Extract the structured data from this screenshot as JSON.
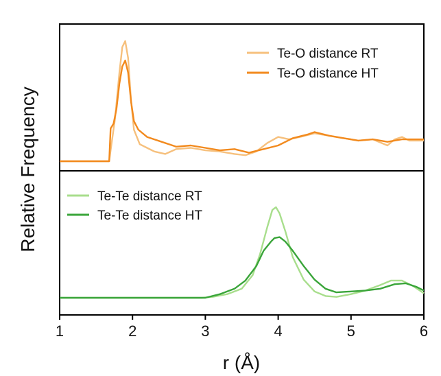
{
  "chart_data": [
    {
      "type": "line",
      "panel": "top",
      "xlabel": "r (Å)",
      "ylabel": "Relative Frequency",
      "xlim": [
        1,
        6
      ],
      "ylim": [
        0,
        1
      ],
      "legend_position": "top-right",
      "series": [
        {
          "name": "Te-O distance RT",
          "color": "#f6c07d",
          "x": [
            1.0,
            1.68,
            1.7,
            1.76,
            1.82,
            1.86,
            1.9,
            1.94,
            1.98,
            2.02,
            2.1,
            2.2,
            2.3,
            2.45,
            2.6,
            2.8,
            3.0,
            3.2,
            3.4,
            3.55,
            3.7,
            3.85,
            4.0,
            4.15,
            4.3,
            4.5,
            4.7,
            4.9,
            5.1,
            5.3,
            5.5,
            5.6,
            5.7,
            5.8,
            6.0
          ],
          "y": [
            0.0,
            0.0,
            0.09,
            0.35,
            0.73,
            0.94,
            0.99,
            0.85,
            0.5,
            0.26,
            0.14,
            0.11,
            0.08,
            0.06,
            0.1,
            0.11,
            0.09,
            0.08,
            0.06,
            0.05,
            0.08,
            0.15,
            0.2,
            0.18,
            0.2,
            0.23,
            0.21,
            0.19,
            0.17,
            0.18,
            0.13,
            0.18,
            0.2,
            0.17,
            0.17
          ]
        },
        {
          "name": "Te-O distance HT",
          "color": "#f28a1e",
          "x": [
            1.0,
            1.68,
            1.7,
            1.74,
            1.78,
            1.82,
            1.86,
            1.9,
            1.94,
            1.98,
            2.02,
            2.08,
            2.2,
            2.4,
            2.6,
            2.8,
            3.0,
            3.2,
            3.4,
            3.6,
            3.8,
            4.0,
            4.2,
            4.4,
            4.5,
            4.7,
            4.9,
            5.1,
            5.3,
            5.5,
            5.7,
            5.9,
            6.0
          ],
          "y": [
            0.0,
            0.0,
            0.27,
            0.31,
            0.43,
            0.64,
            0.78,
            0.83,
            0.73,
            0.49,
            0.33,
            0.26,
            0.2,
            0.16,
            0.12,
            0.13,
            0.11,
            0.09,
            0.1,
            0.07,
            0.1,
            0.13,
            0.19,
            0.22,
            0.24,
            0.21,
            0.19,
            0.17,
            0.18,
            0.16,
            0.18,
            0.18,
            0.18
          ]
        }
      ]
    },
    {
      "type": "line",
      "panel": "bottom",
      "xlabel": "r (Å)",
      "ylabel": "Relative Frequency",
      "xlim": [
        1,
        6
      ],
      "ylim": [
        0,
        1
      ],
      "xticks": [
        1,
        2,
        3,
        4,
        5,
        6
      ],
      "legend_position": "top-left",
      "series": [
        {
          "name": "Te-Te distance RT",
          "color": "#a8de8c",
          "x": [
            1.0,
            2.95,
            3.1,
            3.3,
            3.5,
            3.65,
            3.75,
            3.85,
            3.92,
            3.97,
            4.02,
            4.1,
            4.2,
            4.35,
            4.5,
            4.65,
            4.8,
            5.0,
            5.2,
            5.4,
            5.55,
            5.7,
            5.85,
            6.0
          ],
          "y": [
            0.0,
            0.0,
            0.01,
            0.04,
            0.1,
            0.25,
            0.48,
            0.78,
            0.97,
            1.0,
            0.93,
            0.73,
            0.45,
            0.2,
            0.07,
            0.02,
            0.01,
            0.04,
            0.08,
            0.14,
            0.19,
            0.19,
            0.13,
            0.05
          ]
        },
        {
          "name": "Te-Te distance HT",
          "color": "#3aa53a",
          "x": [
            1.0,
            3.0,
            3.2,
            3.4,
            3.55,
            3.7,
            3.8,
            3.9,
            3.95,
            4.02,
            4.1,
            4.2,
            4.35,
            4.5,
            4.65,
            4.8,
            5.0,
            5.2,
            5.4,
            5.6,
            5.75,
            5.9,
            6.0
          ],
          "y": [
            0.0,
            0.0,
            0.04,
            0.1,
            0.19,
            0.35,
            0.52,
            0.62,
            0.66,
            0.67,
            0.62,
            0.52,
            0.35,
            0.2,
            0.1,
            0.06,
            0.07,
            0.08,
            0.1,
            0.15,
            0.16,
            0.12,
            0.08
          ]
        }
      ]
    }
  ]
}
